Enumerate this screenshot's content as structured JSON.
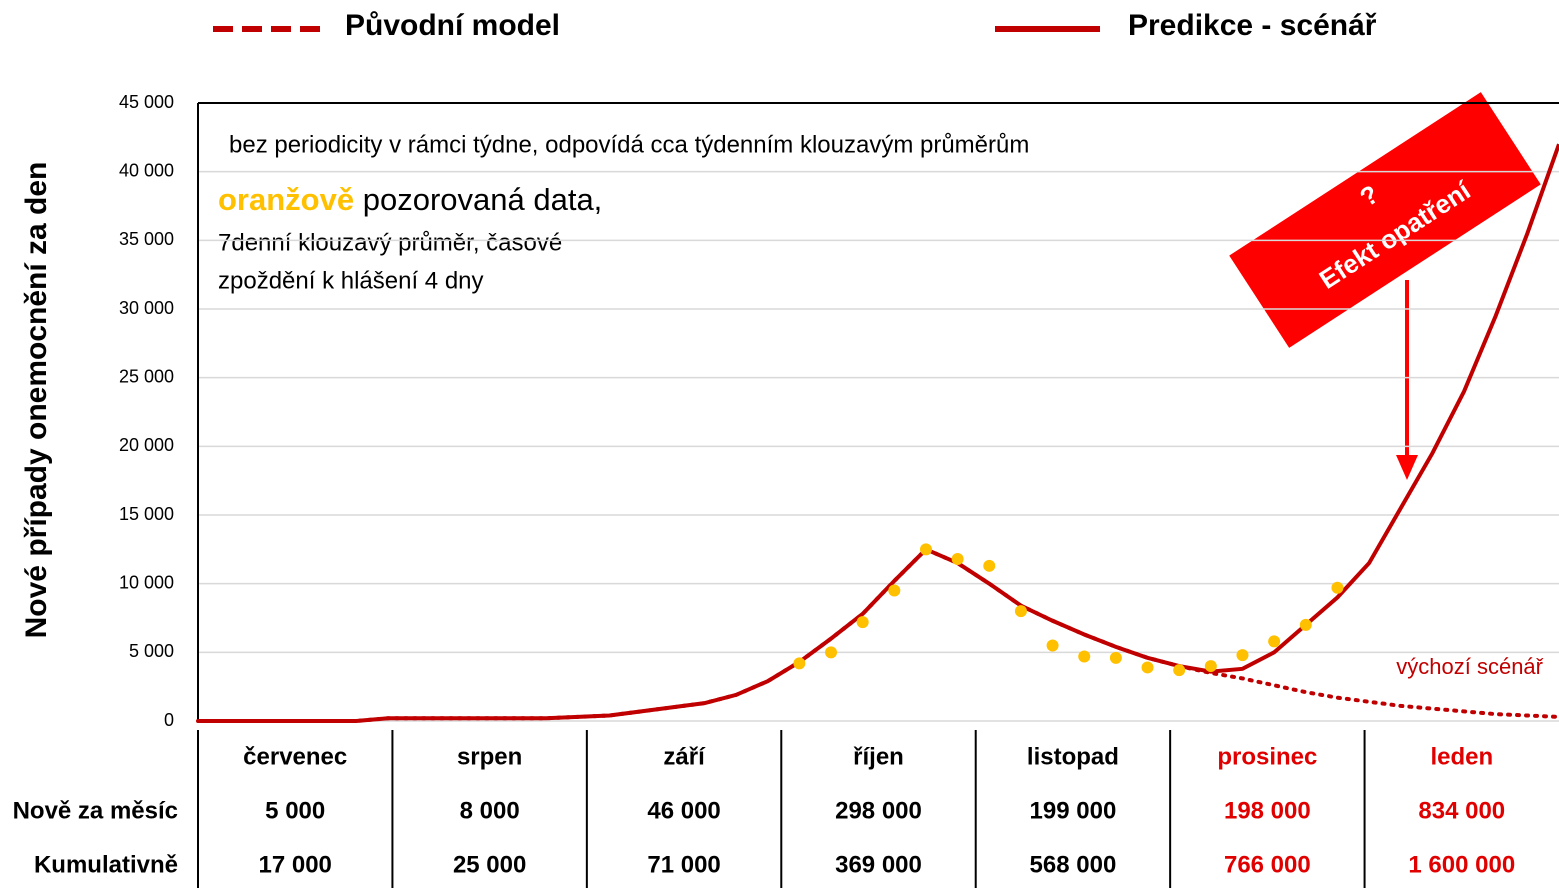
{
  "chart_data": {
    "type": "line",
    "y_axis_label": "Nové případy onemocnění za den",
    "categories": [
      null,
      null,
      null,
      null,
      null,
      null,
      null,
      null,
      null,
      null,
      null,
      null,
      null,
      null,
      null,
      null,
      null,
      null,
      null,
      null,
      null,
      null,
      null,
      null,
      null,
      null,
      null,
      null,
      null,
      null,
      null,
      null,
      null,
      null,
      null,
      null,
      null,
      null,
      null,
      null,
      null,
      null,
      null,
      null
    ],
    "series": [
      {
        "name": "Původní model",
        "color": "#c00000",
        "style": "dotted",
        "values": [
          0,
          0,
          0,
          0,
          0,
          0,
          200,
          200,
          200,
          200,
          200,
          200,
          300,
          400,
          700,
          1000,
          1300,
          1900,
          2900,
          4300,
          6000,
          7800,
          10200,
          12500,
          11500,
          10000,
          8400,
          7300,
          6300,
          5400,
          4600,
          4000,
          3500,
          3100,
          2600,
          2100,
          1700,
          1400,
          1100,
          900,
          700,
          500,
          400,
          300
        ]
      },
      {
        "name": "Predikce - scénář",
        "color": "#c00000",
        "style": "solid",
        "values": [
          0,
          0,
          0,
          0,
          0,
          0,
          200,
          200,
          200,
          200,
          200,
          200,
          300,
          400,
          700,
          1000,
          1300,
          1900,
          2900,
          4300,
          6000,
          7800,
          10200,
          12500,
          11500,
          10000,
          8400,
          7300,
          6300,
          5400,
          4600,
          4000,
          3600,
          3800,
          5000,
          7000,
          9000,
          11500,
          15500,
          19500,
          24000,
          29500,
          35500,
          42000
        ]
      },
      {
        "color": "#ffc000",
        "style": "dots",
        "values": [
          null,
          null,
          null,
          null,
          null,
          null,
          null,
          null,
          null,
          null,
          null,
          null,
          null,
          null,
          null,
          null,
          null,
          null,
          null,
          4200,
          5000,
          7200,
          9500,
          12500,
          11800,
          11300,
          8000,
          5500,
          4700,
          4600,
          3900,
          3700,
          4000,
          4800,
          5800,
          7000,
          9700,
          null,
          null,
          null,
          null,
          null,
          null,
          null
        ]
      }
    ],
    "ylim": [
      0,
      45000
    ],
    "yticks": [
      0,
      {
        "value": 5000,
        "label": "5 000"
      },
      {
        "value": 10000,
        "label": "10 000"
      },
      {
        "value": 15000,
        "label": "15 000"
      },
      {
        "value": 20000,
        "label": "20 000"
      },
      {
        "value": 25000,
        "label": "25 000"
      },
      {
        "value": 30000,
        "label": "30 000"
      },
      {
        "value": 35000,
        "label": "35 000"
      },
      {
        "value": 40000,
        "label": "40 000"
      },
      {
        "value": 45000,
        "label": "45 000"
      }
    ],
    "grid": true,
    "annotations": {
      "note": "bez periodicity v rámci týdne, odpovídá cca týdenním klouzavým průměrům",
      "observed_highlight": "oranžově",
      "observed_text": " pozorovaná data,",
      "observed_line2": "7denní klouzavý průměr, časové",
      "observed_line3": "zpoždění k hlášení 4 dny",
      "baseline": "výchozí scénář",
      "effect_mark": "?",
      "effect": "Efekt opatření"
    }
  },
  "table": {
    "columns": [
      "červenec",
      "srpen",
      "září",
      "říjen",
      "listopad",
      "prosinec",
      "leden"
    ],
    "column_colors": [
      "#000000",
      "#000000",
      "#000000",
      "#000000",
      "#000000",
      "#e00000",
      "#e00000"
    ],
    "rows": [
      {
        "label": "Nově za měsíc",
        "cells": [
          "5 000",
          "8 000",
          "46 000",
          "298 000",
          "199 000",
          "198 000",
          "834 000"
        ]
      },
      {
        "label": "Kumulativně",
        "cells": [
          "17 000",
          "25 000",
          "71 000",
          "369 000",
          "568 000",
          "766 000",
          "1 600 000"
        ]
      }
    ]
  }
}
